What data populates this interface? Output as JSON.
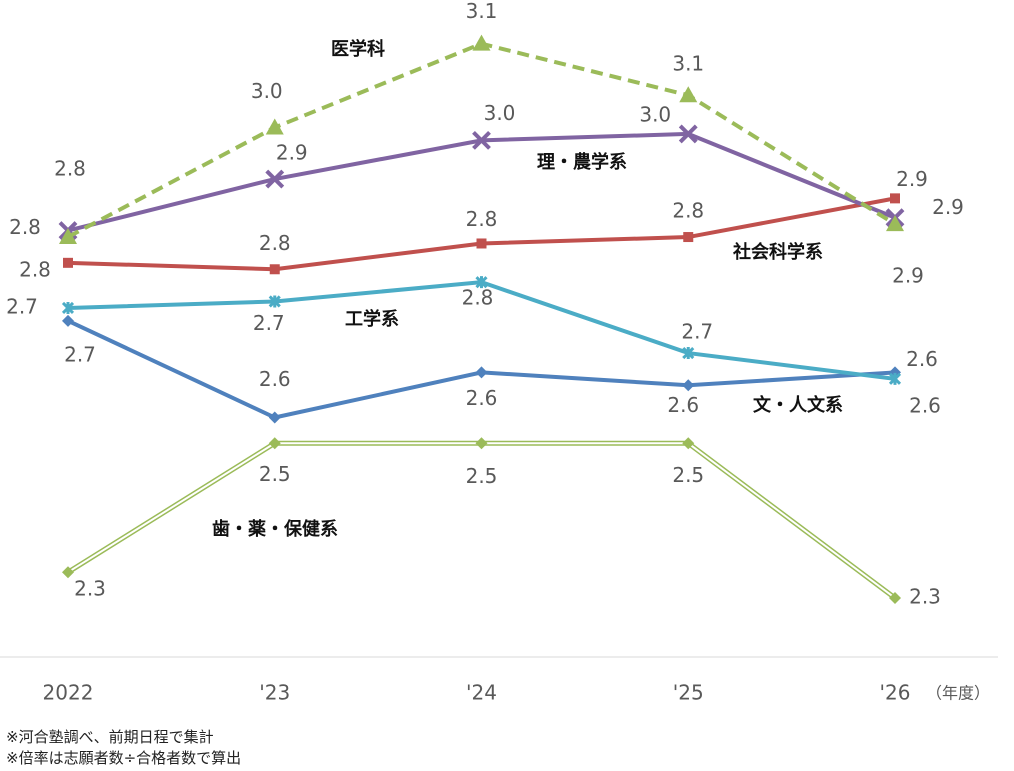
{
  "chart_data": {
    "type": "line",
    "categories": [
      "2022",
      "'23",
      "'24",
      "'25",
      "'26"
    ],
    "x_unit": "（年度）",
    "ylim": [
      2.19,
      3.2
    ],
    "grid": false,
    "series": [
      {
        "name": "歯・薬・保健系",
        "color": "#9bbb59",
        "marker": "diamond",
        "line": "double",
        "values": [
          2.32,
          2.52,
          2.52,
          2.52,
          2.28
        ],
        "value_labels": [
          "2.3",
          "2.5",
          "2.5",
          "2.5",
          "2.3"
        ]
      },
      {
        "name": "文・人文系",
        "color": "#4f81bd",
        "marker": "diamond",
        "line": "solid",
        "values": [
          2.71,
          2.56,
          2.63,
          2.61,
          2.63
        ],
        "value_labels": [
          "2.7",
          "2.6",
          "2.6",
          "2.6",
          "2.6"
        ]
      },
      {
        "name": "工学系",
        "color": "#4bacc6",
        "marker": "star",
        "line": "solid",
        "values": [
          2.73,
          2.74,
          2.77,
          2.66,
          2.62
        ],
        "value_labels": [
          "2.7",
          "2.7",
          "2.8",
          "2.7",
          "2.6"
        ]
      },
      {
        "name": "社会科学系",
        "color": "#c0504d",
        "marker": "square",
        "line": "solid",
        "values": [
          2.8,
          2.79,
          2.83,
          2.84,
          2.9
        ],
        "value_labels": [
          "2.8",
          "2.8",
          "2.8",
          "2.8",
          "2.9"
        ]
      },
      {
        "name": "理・農学系",
        "color": "#8064a2",
        "marker": "x",
        "line": "solid",
        "values": [
          2.85,
          2.93,
          2.99,
          3.0,
          2.87
        ],
        "value_labels": [
          "2.8",
          "2.9",
          "3.0",
          "3.0",
          "2.9"
        ]
      },
      {
        "name": "医学科",
        "color": "#9bbb59",
        "marker": "triangle",
        "line": "dashed",
        "values": [
          2.84,
          3.01,
          3.14,
          3.06,
          2.86
        ],
        "value_labels": [
          "2.8",
          "3.0",
          "3.1",
          "3.1",
          "2.9"
        ]
      }
    ],
    "notes": [
      "※河合塾調べ、前期日程で集計",
      "※倍率は志願者数÷合格者数で算出"
    ]
  }
}
